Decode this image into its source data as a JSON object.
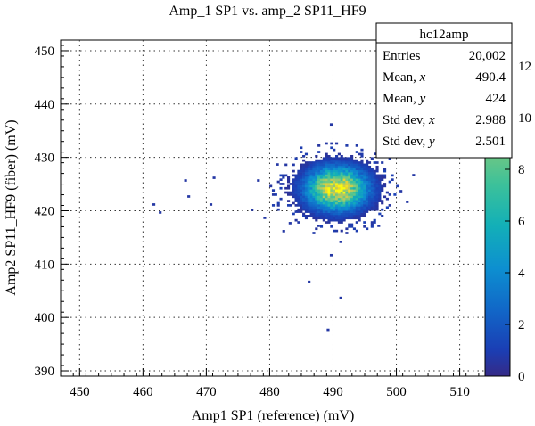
{
  "chart_data": {
    "type": "heatmap",
    "title": "Amp_1 SP1 vs. amp_2 SP11_HF9",
    "xlabel": "Amp1 SP1 (reference) (mV)",
    "ylabel": "Amp2 SP11_HF9 (fiber) (mV)",
    "xlim": [
      447,
      514
    ],
    "ylim": [
      389,
      452
    ],
    "x_ticks": [
      450,
      460,
      470,
      480,
      490,
      500,
      510
    ],
    "y_ticks": [
      390,
      400,
      410,
      420,
      430,
      440,
      450
    ],
    "grid": true,
    "colorbar": {
      "min": 0,
      "max": 13,
      "ticks": [
        0,
        2,
        4,
        6,
        8,
        10,
        12
      ]
    },
    "core": {
      "center_x": 490.4,
      "center_y": 424,
      "sigma_x": 2.988,
      "sigma_y": 2.501,
      "peak": 12.5
    },
    "outliers": [
      [
        466.5,
        425.5
      ],
      [
        467.0,
        422.5
      ],
      [
        470.5,
        421.0
      ],
      [
        471.0,
        426.0
      ],
      [
        461.5,
        421.0
      ],
      [
        462.5,
        419.5
      ],
      [
        477.0,
        420.0
      ],
      [
        479.0,
        418.5
      ],
      [
        482.0,
        416.0
      ],
      [
        483.0,
        417.5
      ],
      [
        487.5,
        417.0
      ],
      [
        489.5,
        411.5
      ],
      [
        491.0,
        414.0
      ],
      [
        486.0,
        406.5
      ],
      [
        491.0,
        403.5
      ],
      [
        489.0,
        397.5
      ],
      [
        489.5,
        436.0
      ],
      [
        496.5,
        430.5
      ],
      [
        501.5,
        421.5
      ],
      [
        500.5,
        423.5
      ],
      [
        502.5,
        426.5
      ],
      [
        478.0,
        425.5
      ],
      [
        481.0,
        428.5
      ],
      [
        497.0,
        417.0
      ]
    ],
    "legend": "top-right",
    "stats": {
      "name": "hc12amp",
      "rows": [
        {
          "label": "Entries",
          "value": "20,002"
        },
        {
          "label": "Mean, x",
          "value": "490.4"
        },
        {
          "label": "Mean, y",
          "value": "424"
        },
        {
          "label": "Std dev, x",
          "value": "2.988"
        },
        {
          "label": "Std dev, y",
          "value": "2.501"
        }
      ]
    }
  }
}
